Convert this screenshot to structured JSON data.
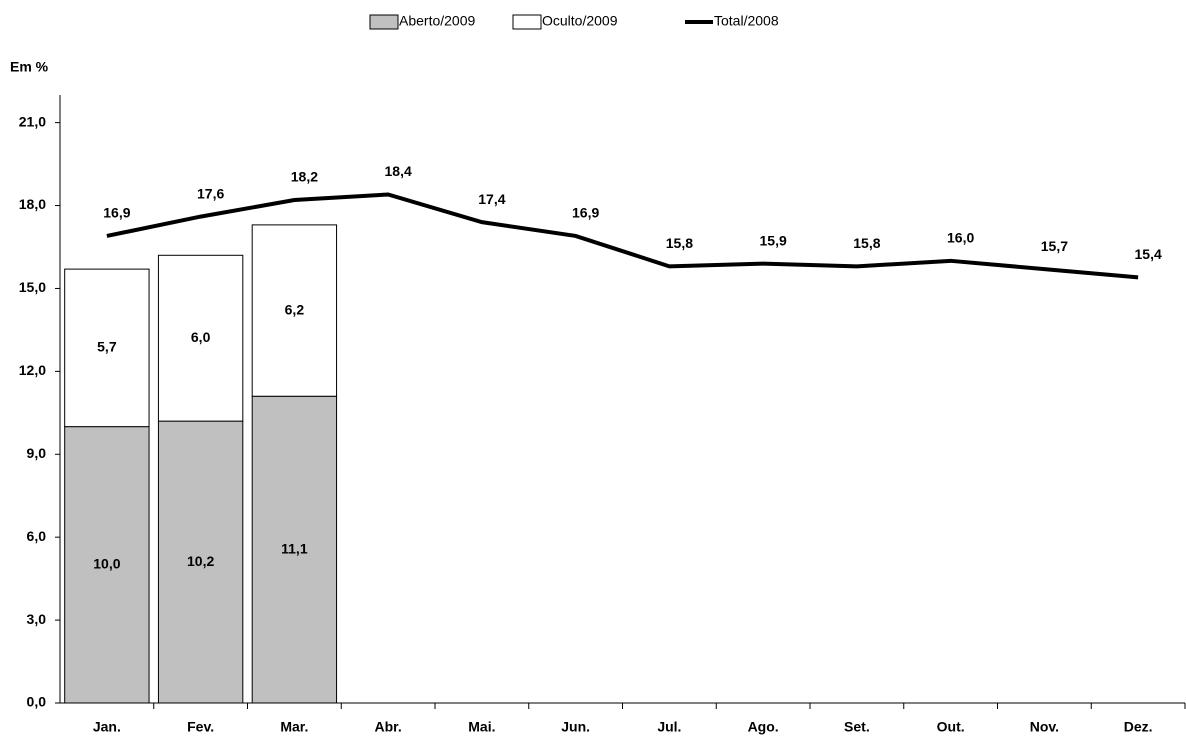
{
  "chart_data": {
    "type": "bar-line",
    "y_label": "Em %",
    "categories": [
      "Jan.",
      "Fev.",
      "Mar.",
      "Abr.",
      "Mai.",
      "Jun.",
      "Jul.",
      "Ago.",
      "Set.",
      "Out.",
      "Nov.",
      "Dez."
    ],
    "series": [
      {
        "name": "Aberto/2009",
        "type": "bar",
        "color": "#c0c0c0",
        "values": [
          10.0,
          10.2,
          11.1,
          null,
          null,
          null,
          null,
          null,
          null,
          null,
          null,
          null
        ],
        "value_labels": [
          "10,0",
          "10,2",
          "11,1",
          null,
          null,
          null,
          null,
          null,
          null,
          null,
          null,
          null
        ]
      },
      {
        "name": "Oculto/2009",
        "type": "bar",
        "color": "#ffffff",
        "values": [
          5.7,
          6.0,
          6.2,
          null,
          null,
          null,
          null,
          null,
          null,
          null,
          null,
          null
        ],
        "value_labels": [
          "5,7",
          "6,0",
          "6,2",
          null,
          null,
          null,
          null,
          null,
          null,
          null,
          null,
          null
        ]
      },
      {
        "name": "Total/2008",
        "type": "line",
        "color": "#000000",
        "values": [
          16.9,
          17.6,
          18.2,
          18.4,
          17.4,
          16.9,
          15.8,
          15.9,
          15.8,
          16.0,
          15.7,
          15.4
        ],
        "value_labels": [
          "16,9",
          "17,6",
          "18,2",
          "18,4",
          "17,4",
          "16,9",
          "15,8",
          "15,9",
          "15,8",
          "16,0",
          "15,7",
          "15,4"
        ]
      }
    ],
    "stacked": true,
    "ylim": [
      0,
      22
    ],
    "yticks": [
      {
        "value": 0,
        "label": "0,0"
      },
      {
        "value": 3,
        "label": "3,0"
      },
      {
        "value": 6,
        "label": "6,0"
      },
      {
        "value": 9,
        "label": "9,0"
      },
      {
        "value": 12,
        "label": "12,0"
      },
      {
        "value": 15,
        "label": "15,0"
      },
      {
        "value": 18,
        "label": "18,0"
      },
      {
        "value": 21,
        "label": "21,0"
      }
    ],
    "legend": "top"
  }
}
